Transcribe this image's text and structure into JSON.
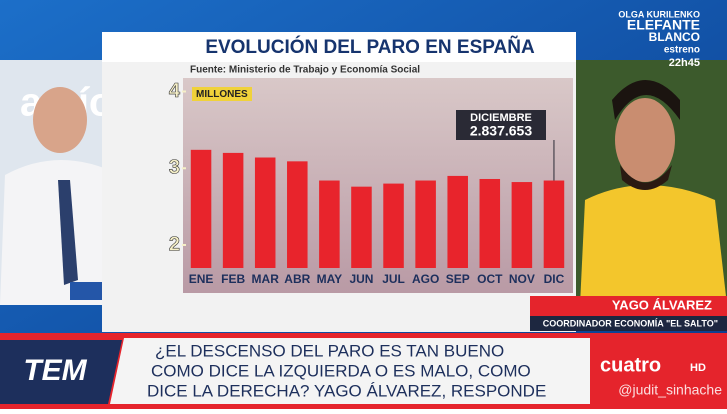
{
  "chart_data": {
    "type": "bar",
    "title": "EVOLUCIÓN DEL PARO EN ESPAÑA",
    "subtitle": "Fuente: Ministerio de Trabajo y Economía Social",
    "y_label": "MILLONES",
    "categories": [
      "ENE",
      "FEB",
      "MAR",
      "ABR",
      "MAY",
      "JUN",
      "JUL",
      "AGO",
      "SEP",
      "OCT",
      "NOV",
      "DIC"
    ],
    "values": [
      3.24,
      3.2,
      3.14,
      3.09,
      2.84,
      2.76,
      2.8,
      2.84,
      2.9,
      2.86,
      2.82,
      2.84
    ],
    "color": "#e8242c",
    "ylim": [
      1.7,
      4.15
    ],
    "yticks": [
      2,
      3,
      4
    ],
    "annotations": [
      "DICIEMBRE",
      "2.837.653"
    ]
  },
  "overlay": {
    "background_text": "amío",
    "promo": [
      "OLGA KURILENKO",
      "ELEFANTE",
      "BLANCO",
      "estreno",
      "22h45"
    ],
    "guest_name": "YAGO ÁLVAREZ",
    "guest_role": "COORDINADOR ECONOMÍA \"EL SALTO\"",
    "show": "TEM",
    "question": [
      "¿EL DESCENSO DEL PARO ES TAN BUENO",
      "COMO DICE LA IZQUIERDA O ES MALO, COMO",
      "DICE LA DERECHA? YAGO ÁLVAREZ, RESPONDE"
    ],
    "channel": "cuatro",
    "channel_hd": "HD",
    "watermark": "@judit_sinhache"
  }
}
